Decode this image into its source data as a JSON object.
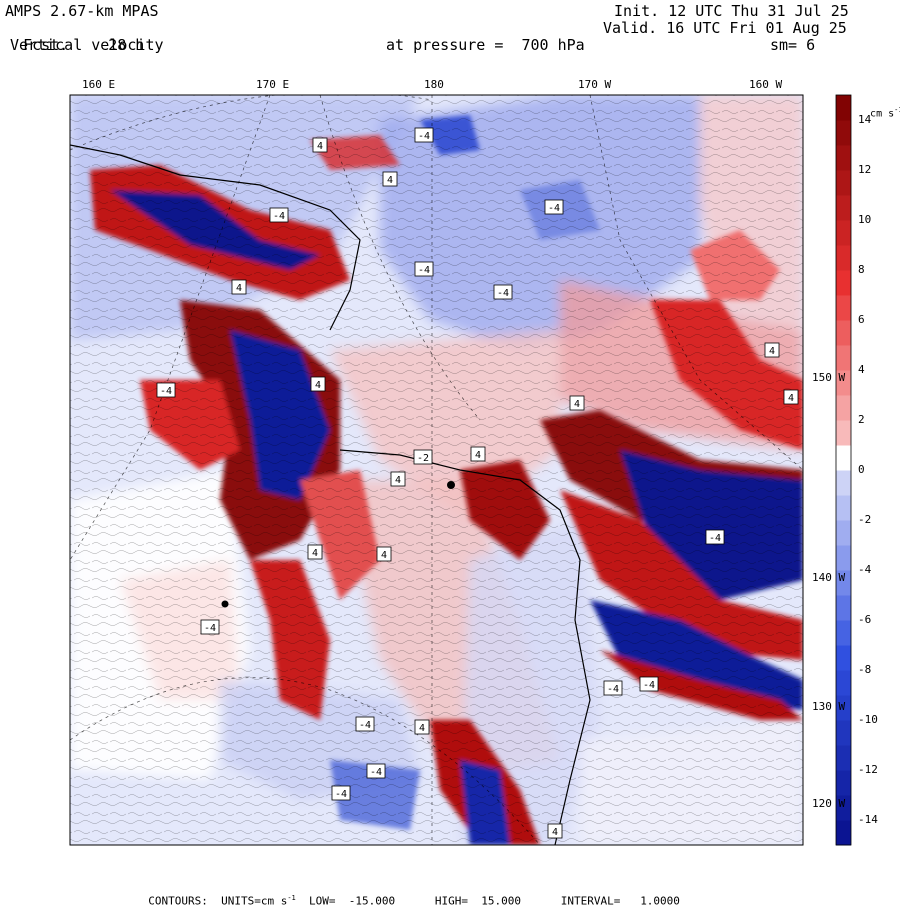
{
  "header": {
    "model": "AMPS 2.67-km MPAS",
    "fcst_label": "Fcst.",
    "fcst_value": "28 h",
    "field": "Vertical velocity",
    "pressure": "at pressure =  700 hPa",
    "init": "Init. 12 UTC Thu 31 Jul 25",
    "valid": "Valid. 16 UTC Fri 01 Aug 25",
    "smooth": "sm= 6"
  },
  "map": {
    "longitude_labels": [
      "160 E",
      "170 E",
      "180",
      "170 W",
      "160 W"
    ],
    "latitude_labels": [
      "150 W",
      "140 W",
      "130 W",
      "120 W"
    ],
    "contour_labels": [
      "4",
      "-4",
      "4",
      "-4",
      "4",
      "-4",
      "4",
      "-4",
      "-2",
      "4",
      "-4",
      "4",
      "-4",
      "4",
      "-4",
      "4",
      "-4",
      "4",
      "-4",
      "4",
      "-4",
      "4",
      "-4",
      "4",
      "-4",
      "4",
      "-4"
    ]
  },
  "colorbar": {
    "units_label": "cm s",
    "units_exp": "-1",
    "ticks": [
      "14",
      "12",
      "10",
      "8",
      "6",
      "4",
      "2",
      "0",
      "-2",
      "-4",
      "-6",
      "-8",
      "-10",
      "-12",
      "-14"
    ],
    "levels": [
      -15,
      -14,
      -13,
      -12,
      -11,
      -10,
      -9,
      -8,
      -7,
      -6,
      -5,
      -4,
      -3,
      -2,
      -1,
      0,
      1,
      2,
      3,
      4,
      5,
      6,
      7,
      8,
      9,
      10,
      11,
      12,
      13,
      14,
      15
    ],
    "colors": {
      "neg_max": "#08108c",
      "neg_mid": "#3050e0",
      "neg_light": "#d8dcf8",
      "zero": "#ffffff",
      "pos_light": "#fcdcdc",
      "pos_mid": "#e83030",
      "pos_max": "#7a0000"
    }
  },
  "footer": {
    "contours": "CONTOURS:",
    "units": "UNITS=cm s",
    "units_exp": "-1",
    "low": "LOW=  -15.000",
    "high": "HIGH=  15.000",
    "interval": "INTERVAL=   1.0000"
  }
}
